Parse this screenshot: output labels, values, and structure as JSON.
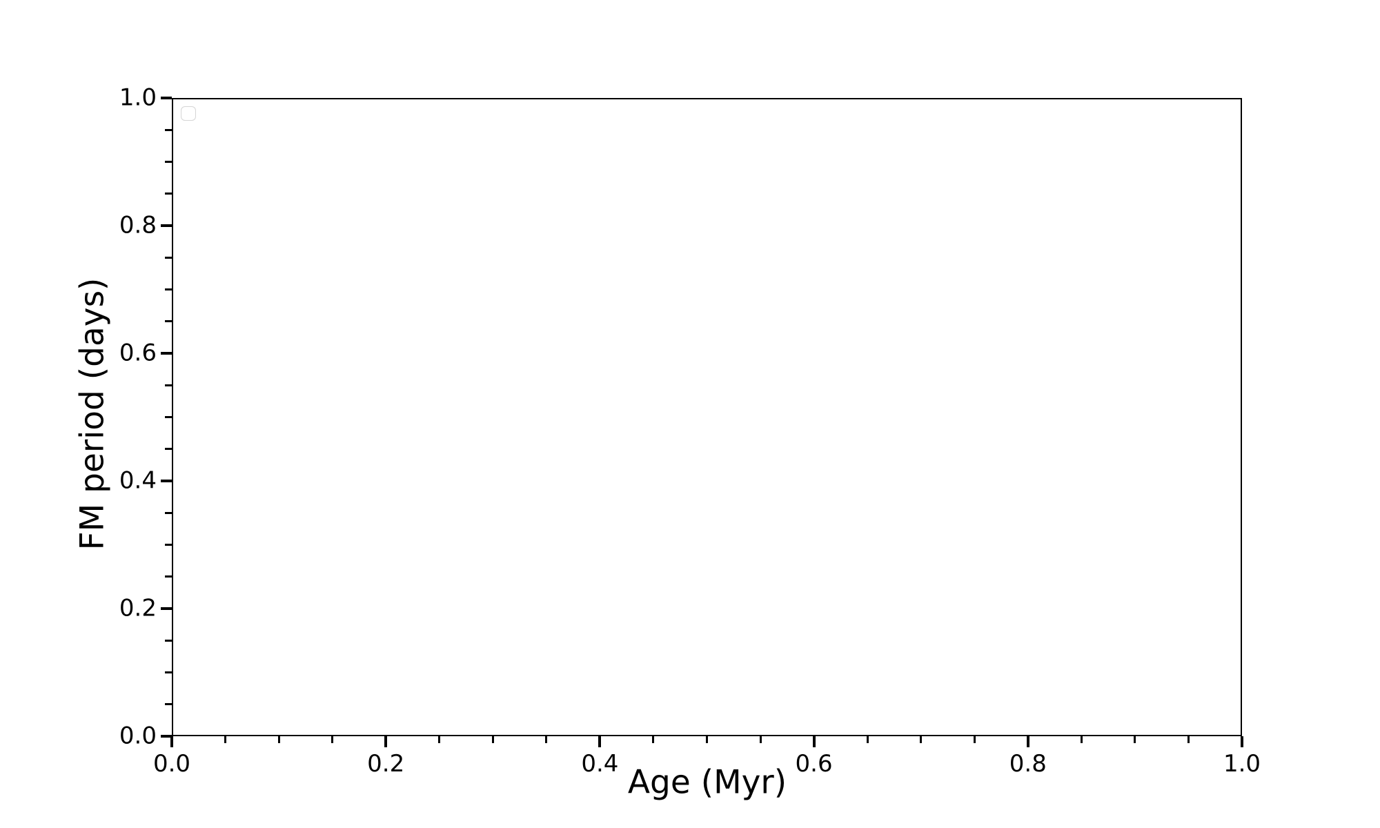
{
  "figure": {
    "background": "#ffffff"
  },
  "chart_data": {
    "type": "scatter",
    "title": "",
    "xlabel": "Age (Myr)",
    "ylabel": "FM period (days)",
    "xlim": [
      0.0,
      1.0
    ],
    "ylim": [
      0.0,
      1.0
    ],
    "x_tick_values": [
      0.0,
      0.2,
      0.4,
      0.6,
      0.8,
      1.0
    ],
    "x_tick_labels": [
      "0.0",
      "0.2",
      "0.4",
      "0.6",
      "0.8",
      "1.0"
    ],
    "y_tick_values": [
      0.0,
      0.2,
      0.4,
      0.6,
      0.8,
      1.0
    ],
    "y_tick_labels": [
      "0.0",
      "0.2",
      "0.4",
      "0.6",
      "0.8",
      "1.0"
    ],
    "minor_tick_step": 0.05,
    "grid": false,
    "series": [],
    "legend": {
      "visible": true,
      "position": "upper left",
      "entries": []
    },
    "axis_color": "#000000",
    "legend_border_color": "#d5d5d5"
  }
}
